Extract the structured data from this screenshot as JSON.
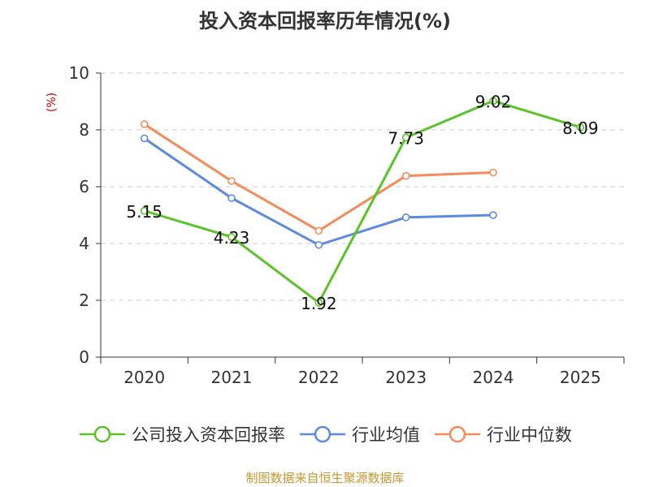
{
  "chart_data": {
    "type": "line",
    "title": "投入资本回报率历年情况(%)",
    "ylabel": "(%)",
    "xlabel": "",
    "categories": [
      "2020",
      "2021",
      "2022",
      "2023",
      "2024",
      "2025"
    ],
    "ylim": [
      0,
      10
    ],
    "yticks": [
      0,
      2,
      4,
      6,
      8,
      10
    ],
    "grid": true,
    "legend_position": "bottom",
    "series": [
      {
        "name": "公司投入资本回报率",
        "color": "#5ac328",
        "values": [
          5.15,
          4.23,
          1.92,
          7.73,
          9.02,
          8.09
        ],
        "show_labels": true
      },
      {
        "name": "行业均值",
        "color": "#5b8ae0",
        "values": [
          7.7,
          5.6,
          3.95,
          4.92,
          5.0,
          null
        ],
        "show_labels": false
      },
      {
        "name": "行业中位数",
        "color": "#f48b5a",
        "values": [
          8.2,
          6.2,
          4.45,
          6.38,
          6.5,
          null
        ],
        "show_labels": false
      }
    ]
  },
  "source_text": "制图数据来自恒生聚源数据库"
}
